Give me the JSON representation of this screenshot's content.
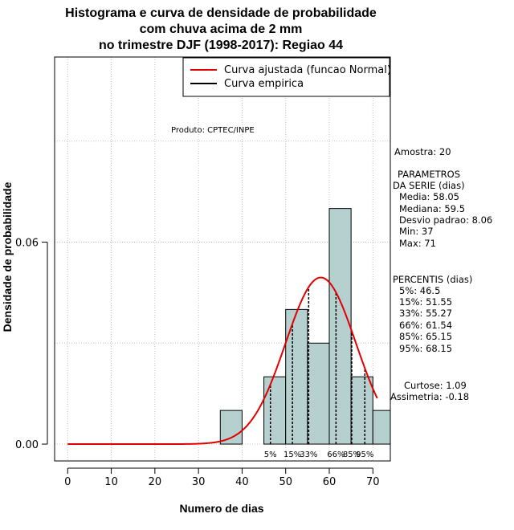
{
  "chart_data": {
    "type": "bar",
    "title_lines": [
      "Histograma e curva de densidade de probabilidade",
      "com chuva acima de 2 mm",
      "no trimestre DJF (1998-2017): Regiao 44"
    ],
    "xlabel": "Numero de dias",
    "ylabel": "Densidade de probabilidade",
    "xlim": [
      -3,
      74
    ],
    "ylim": [
      -0.005,
      0.115
    ],
    "x_ticks": [
      0,
      10,
      20,
      30,
      40,
      50,
      60,
      70
    ],
    "x_tick_labels": [
      "0",
      "10",
      "20",
      "30",
      "40",
      "50",
      "60",
      "70"
    ],
    "y_ticks": [
      0.0,
      0.06
    ],
    "y_tick_labels": [
      "0.00",
      "0.06"
    ],
    "grid": true,
    "bins": [
      {
        "x0": 35,
        "x1": 40,
        "density": 0.01
      },
      {
        "x0": 40,
        "x1": 45,
        "density": 0.0
      },
      {
        "x0": 45,
        "x1": 50,
        "density": 0.02
      },
      {
        "x0": 50,
        "x1": 55,
        "density": 0.04
      },
      {
        "x0": 55,
        "x1": 60,
        "density": 0.03
      },
      {
        "x0": 60,
        "x1": 65,
        "density": 0.07
      },
      {
        "x0": 65,
        "x1": 70,
        "density": 0.02
      },
      {
        "x0": 70,
        "x1": 75,
        "density": 0.01
      }
    ],
    "normal_curve": {
      "mean": 58.05,
      "sd": 8.06,
      "x_from": 0,
      "x_to": 71,
      "color": "#e00000"
    },
    "bar_color": "#b6cfcf",
    "percentile_lines": [
      {
        "label": "5%",
        "x": 46.5
      },
      {
        "label": "15%",
        "x": 51.55
      },
      {
        "label": "33%",
        "x": 55.27
      },
      {
        "label": "66%",
        "x": 61.54
      },
      {
        "label": "85%",
        "x": 65.15
      },
      {
        "label": "95%",
        "x": 68.15
      }
    ],
    "legend": [
      {
        "label": "Curva ajustada (funcao Normal)",
        "color": "#e00000"
      },
      {
        "label": "Curva empirica",
        "color": "#000000"
      }
    ],
    "credit": "Produto: CPTEC/INPE",
    "side_lines": [
      "Amostra: 20",
      "PARAMETROS",
      "DA SERIE (dias)",
      "Media: 58.05",
      "Mediana: 59.5",
      "Desvio padrao: 8.06",
      "Min: 37",
      "Max: 71",
      "PERCENTIS (dias)",
      "5%: 46.5",
      "15%: 51.55",
      "33%: 55.27",
      "66%: 61.54",
      "85%: 65.15",
      "95%: 68.15",
      "Curtose: 1.09",
      "Assimetria: -0.18"
    ]
  }
}
